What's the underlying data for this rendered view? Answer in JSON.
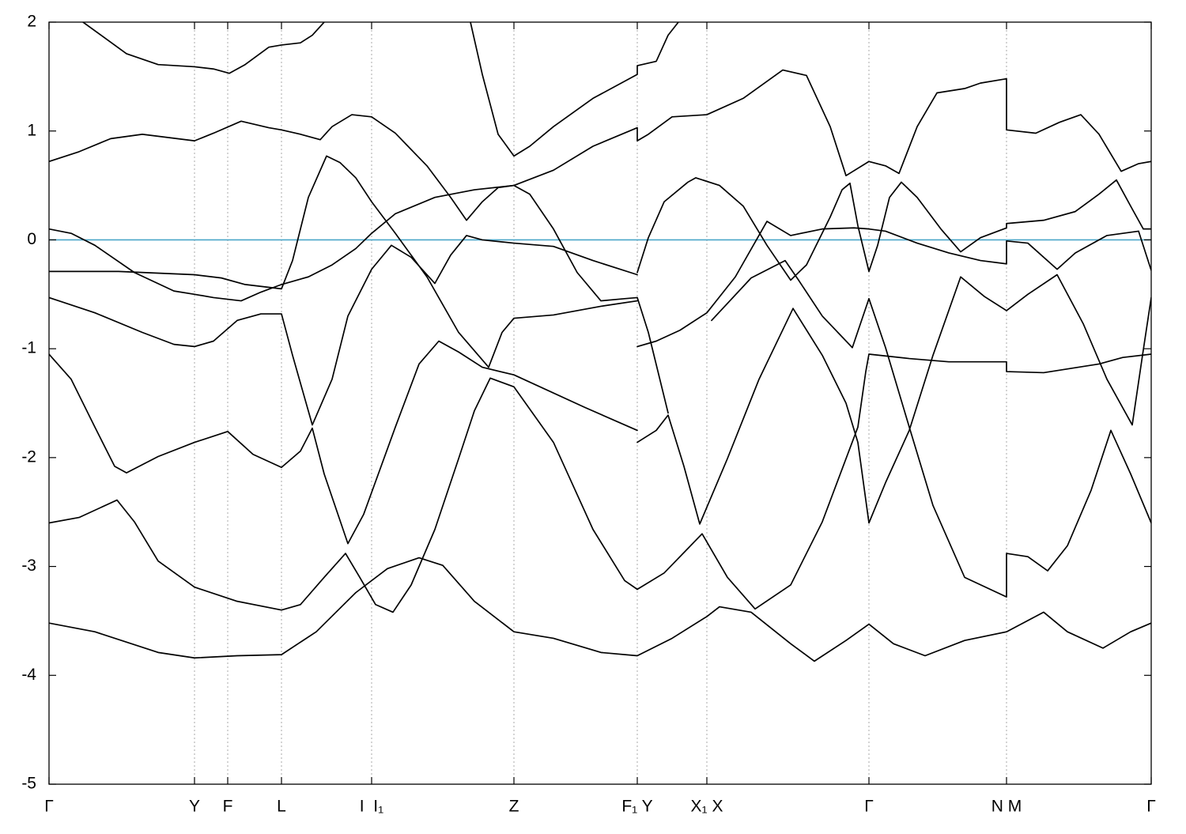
{
  "chart_data": {
    "type": "line",
    "xlim": [
      0,
      13.94
    ],
    "ylim": [
      -5,
      2
    ],
    "yticks": [
      -5,
      -4,
      -3,
      -2,
      -1,
      0,
      1,
      2
    ],
    "xticks": [
      {
        "value": 0,
        "label": "Γ"
      },
      {
        "value": 1.84,
        "label": "Y"
      },
      {
        "value": 2.26,
        "label": "F"
      },
      {
        "value": 2.94,
        "label": "L"
      },
      {
        "value": 4.08,
        "label": "I  I₁"
      },
      {
        "value": 5.88,
        "label": "Z"
      },
      {
        "value": 7.44,
        "label": "F₁ Y"
      },
      {
        "value": 8.32,
        "label": "X₁ X"
      },
      {
        "value": 10.37,
        "label": "Γ"
      },
      {
        "value": 12.11,
        "label": "N M"
      },
      {
        "value": 13.94,
        "label": "Γ"
      }
    ],
    "xgrid": true,
    "grid_color": "#aaaaaa",
    "reference_line": {
      "y": 0,
      "color": "#4aa6c9"
    },
    "series": [
      {
        "color": "#000000",
        "x": [
          0.43,
          0.98,
          1.38,
          1.84,
          2.08,
          2.28,
          2.48,
          2.78,
          2.94,
          3.18,
          3.33,
          3.48
        ],
        "values": [
          2.0,
          1.71,
          1.61,
          1.59,
          1.57,
          1.53,
          1.61,
          1.77,
          1.79,
          1.81,
          1.88,
          2.0
        ]
      },
      {
        "color": "#000000",
        "x": [
          0,
          0.38,
          0.78,
          1.18,
          1.84,
          2.08,
          2.43,
          2.78,
          2.94,
          3.18,
          3.43,
          3.58,
          3.83,
          4.08,
          4.38,
          4.78,
          5.08,
          5.28,
          5.48,
          5.68,
          5.88,
          6.38,
          6.88,
          7.44,
          7.44,
          7.58,
          7.88,
          8.32,
          8.78,
          9.28,
          9.58,
          9.88,
          10.08,
          10.37,
          10.58,
          10.75,
          10.98,
          11.23,
          11.58,
          11.78,
          12.11,
          12.11,
          12.48,
          12.78,
          13.05,
          13.28,
          13.56,
          13.78,
          13.94
        ],
        "values": [
          0.72,
          0.81,
          0.93,
          0.97,
          0.91,
          0.98,
          1.09,
          1.03,
          1.01,
          0.97,
          0.92,
          1.04,
          1.15,
          1.13,
          0.98,
          0.68,
          0.39,
          0.18,
          0.35,
          0.48,
          0.5,
          0.64,
          0.86,
          1.03,
          0.91,
          0.97,
          1.13,
          1.15,
          1.3,
          1.56,
          1.51,
          1.04,
          0.59,
          0.72,
          0.68,
          0.61,
          1.04,
          1.35,
          1.39,
          1.44,
          1.48,
          1.01,
          0.98,
          1.08,
          1.15,
          0.97,
          0.63,
          0.7,
          0.72
        ]
      },
      {
        "color": "#000000",
        "x": [
          5.33,
          5.48,
          5.68,
          5.88,
          6.08,
          6.38,
          6.88,
          7.44,
          7.44,
          7.68,
          7.83,
          7.96
        ],
        "values": [
          2.0,
          1.52,
          0.97,
          0.77,
          0.86,
          1.04,
          1.3,
          1.52,
          1.6,
          1.64,
          1.88,
          2.0
        ]
      },
      {
        "color": "#000000",
        "x": [
          0,
          0.28,
          0.58,
          1.08,
          1.58,
          1.84,
          2.08,
          2.43,
          2.68,
          2.94,
          3.28,
          3.58,
          3.88,
          4.08,
          4.38,
          4.88,
          5.38,
          5.88,
          6.08,
          6.38,
          6.68,
          6.98,
          7.28,
          7.44,
          7.58,
          7.83
        ],
        "values": [
          0.1,
          0.06,
          -0.05,
          -0.3,
          -0.47,
          -0.5,
          -0.53,
          -0.56,
          -0.48,
          -0.41,
          -0.34,
          -0.23,
          -0.08,
          0.06,
          0.24,
          0.39,
          0.46,
          0.5,
          0.42,
          0.1,
          -0.3,
          -0.56,
          -0.54,
          -0.53,
          -0.85,
          -1.59
        ]
      },
      {
        "color": "#000000",
        "x": [
          0,
          0.88,
          1.84,
          2.18,
          2.48,
          2.94,
          3.08,
          3.28,
          3.51,
          3.68,
          3.88,
          4.08,
          4.38,
          4.78,
          5.18,
          5.56,
          5.73,
          5.88,
          6.38,
          6.98,
          7.44
        ],
        "values": [
          -0.29,
          -0.29,
          -0.32,
          -0.35,
          -0.41,
          -0.45,
          -0.19,
          0.39,
          0.77,
          0.71,
          0.57,
          0.35,
          0.06,
          -0.34,
          -0.85,
          -1.17,
          -0.85,
          -0.72,
          -0.69,
          -0.61,
          -0.56
        ]
      },
      {
        "color": "#000000",
        "x": [
          7.44,
          7.58,
          7.78,
          8.08,
          8.18,
          8.48,
          8.78,
          9.08,
          9.38,
          9.58,
          9.88,
          10.03,
          10.13,
          10.23,
          10.37,
          10.48,
          10.63,
          10.78,
          10.98,
          11.28,
          11.53,
          11.78,
          12.11,
          12.11,
          12.58,
          12.98,
          13.28,
          13.5,
          13.68,
          13.84,
          13.94
        ],
        "values": [
          -0.3,
          0.02,
          0.35,
          0.53,
          0.57,
          0.5,
          0.31,
          -0.05,
          -0.37,
          -0.23,
          0.21,
          0.46,
          0.52,
          0.13,
          -0.29,
          -0.05,
          0.39,
          0.53,
          0.39,
          0.1,
          -0.11,
          0.02,
          0.11,
          0.15,
          0.18,
          0.26,
          0.42,
          0.55,
          0.31,
          0.1,
          0.1
        ]
      },
      {
        "color": "#000000",
        "x": [
          0,
          0.58,
          1.18,
          1.58,
          1.84,
          2.08,
          2.38,
          2.68,
          2.94,
          3.08,
          3.33,
          3.58,
          3.78,
          4.08,
          4.33,
          4.58,
          4.88,
          5.08,
          5.28,
          5.48,
          5.88,
          6.38,
          6.88,
          7.44
        ],
        "values": [
          -0.53,
          -0.67,
          -0.85,
          -0.96,
          -0.98,
          -0.93,
          -0.74,
          -0.68,
          -0.68,
          -1.06,
          -1.7,
          -1.28,
          -0.7,
          -0.27,
          -0.05,
          -0.16,
          -0.4,
          -0.14,
          0.04,
          0,
          -0.03,
          -0.06,
          -0.19,
          -0.32
        ]
      },
      {
        "color": "#000000",
        "x": [
          7.44,
          7.68,
          7.98,
          8.32,
          8.68,
          9.08,
          9.38,
          9.78,
          10.18,
          10.37,
          10.58,
          10.98,
          11.38,
          11.78,
          12.11,
          12.11,
          12.38,
          12.75,
          12.98,
          13.38,
          13.78,
          13.94
        ],
        "values": [
          -0.98,
          -0.93,
          -0.83,
          -0.67,
          -0.34,
          0.17,
          0.04,
          0.1,
          0.11,
          0.1,
          0.08,
          -0.03,
          -0.12,
          -0.19,
          -0.22,
          -0.01,
          -0.03,
          -0.27,
          -0.12,
          0.04,
          0.08,
          -0.28
        ]
      },
      {
        "color": "#000000",
        "x": [
          8.38,
          8.88,
          9.31,
          9.48,
          9.78,
          10.16,
          10.37,
          10.58,
          10.88,
          11.18,
          11.58,
          12.11,
          12.11,
          12.38,
          12.63,
          12.88,
          13.18,
          13.43,
          13.68,
          13.94
        ],
        "values": [
          -0.74,
          -0.35,
          -0.19,
          -0.37,
          -0.7,
          -0.99,
          -0.54,
          -0.99,
          -1.72,
          -2.44,
          -3.1,
          -3.28,
          -2.88,
          -2.91,
          -3.04,
          -2.81,
          -2.3,
          -1.75,
          -2.15,
          -2.6
        ]
      },
      {
        "color": "#000000",
        "x": [
          0,
          0.28,
          0.58,
          0.83,
          0.98,
          1.38,
          1.84,
          2.26,
          2.58,
          2.94,
          3.18,
          3.33,
          3.48,
          3.78,
          3.98,
          4.38,
          4.68,
          4.93,
          5.18,
          5.48,
          5.88,
          6.78,
          7.44
        ],
        "values": [
          -1.05,
          -1.28,
          -1.72,
          -2.08,
          -2.14,
          -1.99,
          -1.86,
          -1.76,
          -1.97,
          -2.09,
          -1.94,
          -1.73,
          -2.15,
          -2.79,
          -2.52,
          -1.72,
          -1.14,
          -0.93,
          -1.03,
          -1.17,
          -1.24,
          -1.54,
          -1.75
        ]
      },
      {
        "color": "#000000",
        "x": [
          7.44,
          7.68,
          7.83,
          8.03,
          8.23,
          8.58,
          8.98,
          9.41,
          9.78,
          10.08,
          10.23,
          10.37,
          10.58,
          10.88,
          11.18,
          11.53,
          11.83,
          12.11,
          12.38,
          12.75,
          13.08,
          13.38,
          13.7,
          13.83,
          13.94
        ],
        "values": [
          -1.86,
          -1.75,
          -1.61,
          -2.08,
          -2.61,
          -2.01,
          -1.28,
          -0.63,
          -1.06,
          -1.5,
          -1.86,
          -2.6,
          -2.23,
          -1.75,
          -1.06,
          -0.34,
          -0.52,
          -0.65,
          -0.5,
          -0.32,
          -0.77,
          -1.28,
          -1.7,
          -1.06,
          -0.53
        ]
      },
      {
        "color": "#000000",
        "x": [
          0,
          0.38,
          0.86,
          1.08,
          1.38,
          1.84,
          2.38,
          2.94,
          3.18,
          3.48,
          3.75,
          3.93,
          4.13,
          4.35,
          4.58,
          4.88,
          5.18,
          5.38,
          5.58,
          5.88,
          6.38,
          6.88,
          7.28,
          7.44
        ],
        "values": [
          -2.6,
          -2.55,
          -2.39,
          -2.59,
          -2.95,
          -3.19,
          -3.32,
          -3.4,
          -3.35,
          -3.1,
          -2.88,
          -3.1,
          -3.35,
          -3.42,
          -3.17,
          -2.66,
          -2.01,
          -1.57,
          -1.27,
          -1.35,
          -1.86,
          -2.66,
          -3.13,
          -3.21
        ]
      },
      {
        "color": "#000000",
        "x": [
          7.44,
          7.78,
          8.26,
          8.58,
          8.93,
          9.38,
          9.78,
          10.08,
          10.23,
          10.33,
          10.37,
          10.88,
          11.38,
          12.11,
          12.11,
          12.58,
          13.28,
          13.58,
          13.94
        ],
        "values": [
          -3.21,
          -3.06,
          -2.7,
          -3.1,
          -3.39,
          -3.17,
          -2.59,
          -2.01,
          -1.72,
          -1.21,
          -1.05,
          -1.09,
          -1.12,
          -1.12,
          -1.21,
          -1.22,
          -1.14,
          -1.08,
          -1.05
        ]
      },
      {
        "color": "#000000",
        "x": [
          0,
          0.58,
          1.38,
          1.84,
          2.38,
          2.94,
          3.38,
          3.88,
          4.28,
          4.68,
          4.98,
          5.38,
          5.88,
          6.38,
          6.98,
          7.44,
          7.88,
          8.32,
          8.48,
          8.88,
          9.38,
          9.68,
          10.08,
          10.37,
          10.68,
          11.08,
          11.58,
          12.11,
          12.58,
          12.88,
          13.33,
          13.68,
          13.94
        ],
        "values": [
          -3.52,
          -3.6,
          -3.79,
          -3.84,
          -3.82,
          -3.81,
          -3.6,
          -3.24,
          -3.02,
          -2.92,
          -2.99,
          -3.32,
          -3.6,
          -3.66,
          -3.79,
          -3.82,
          -3.66,
          -3.46,
          -3.37,
          -3.42,
          -3.71,
          -3.87,
          -3.68,
          -3.53,
          -3.71,
          -3.82,
          -3.68,
          -3.6,
          -3.42,
          -3.6,
          -3.75,
          -3.6,
          -3.52
        ]
      }
    ]
  }
}
